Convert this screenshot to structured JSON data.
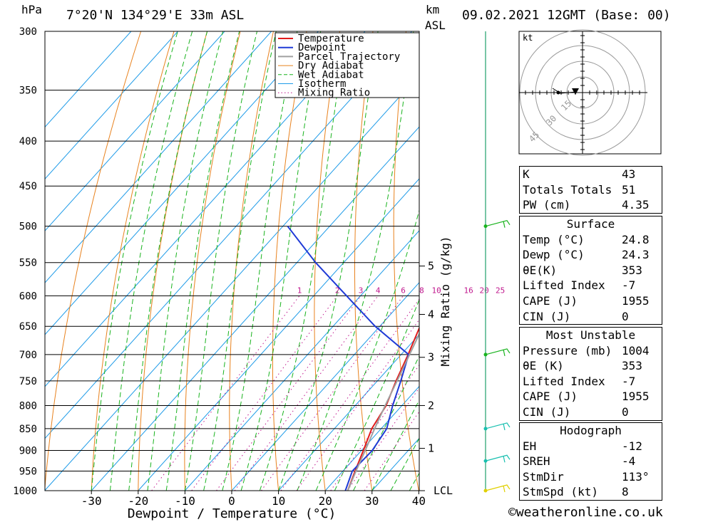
{
  "header": {
    "hpa_unit": "hPa",
    "location": "7°20'N  134°29'E  33m  ASL",
    "km_unit": "km",
    "asl_unit": "ASL",
    "datetime": "09.02.2021  12GMT  (Base: 00)"
  },
  "chart_data": {
    "type": "line",
    "xlabel": "Dewpoint / Temperature (°C)",
    "ylabel_right": "Mixing Ratio (g/kg)",
    "y_scale": "log",
    "ylim": [
      1000,
      300
    ],
    "xlim": [
      -40,
      40
    ],
    "pressure_levels": [
      300,
      350,
      400,
      450,
      500,
      550,
      600,
      650,
      700,
      750,
      800,
      850,
      900,
      950,
      1000
    ],
    "x_ticks": [
      -30,
      -20,
      -10,
      0,
      10,
      20,
      30,
      40
    ],
    "km_ticks": [
      {
        "label": "5",
        "p": 555
      },
      {
        "label": "4",
        "p": 630
      },
      {
        "label": "3",
        "p": 705
      },
      {
        "label": "2",
        "p": 800
      },
      {
        "label": "1",
        "p": 895
      },
      {
        "label": "LCL",
        "p": 1000
      }
    ],
    "mixing_ratio_labels": [
      "1",
      "2",
      "3",
      "4",
      "6",
      "8",
      "10",
      "16",
      "20",
      "25"
    ],
    "legend": [
      "Temperature",
      "Dewpoint",
      "Parcel Trajectory",
      "Dry Adiabat",
      "Wet Adiabat",
      "Isotherm",
      "Mixing Ratio"
    ],
    "colors": {
      "temperature": "#e21b1b",
      "dewpoint": "#1f3ad6",
      "parcel": "#a0a0a0",
      "dry_adiabat": "#e8821e",
      "wet_adiabat": "#19b31e",
      "isotherm": "#1e9be8",
      "mixing_ratio": "#c0188e"
    },
    "series": [
      {
        "name": "Temperature",
        "points": [
          [
            1000,
            24.8
          ],
          [
            950,
            22.6
          ],
          [
            900,
            20.4
          ],
          [
            850,
            18.0
          ],
          [
            800,
            16.6
          ],
          [
            750,
            14.0
          ],
          [
            700,
            11.5
          ],
          [
            650,
            8.6
          ],
          [
            600,
            5.6
          ],
          [
            550,
            2.0
          ],
          [
            500,
            -2.0
          ]
        ]
      },
      {
        "name": "Dewpoint",
        "points": [
          [
            1000,
            24.3
          ],
          [
            950,
            22.0
          ],
          [
            900,
            22.3
          ],
          [
            850,
            21.2
          ],
          [
            800,
            18.0
          ],
          [
            750,
            15.0
          ],
          [
            700,
            11.6
          ],
          [
            650,
            -1.0
          ],
          [
            600,
            -13.0
          ],
          [
            550,
            -26.0
          ],
          [
            500,
            -39.0
          ]
        ]
      },
      {
        "name": "Parcel Trajectory",
        "points": [
          [
            1000,
            24.8
          ],
          [
            950,
            22.8
          ],
          [
            900,
            20.8
          ],
          [
            850,
            18.6
          ],
          [
            800,
            16.4
          ],
          [
            750,
            14.2
          ],
          [
            700,
            11.8
          ],
          [
            650,
            9.2
          ],
          [
            600,
            6.4
          ],
          [
            550,
            3.2
          ],
          [
            500,
            -0.2
          ],
          [
            450,
            -4.5
          ],
          [
            400,
            -9.8
          ],
          [
            360,
            -15.0
          ]
        ]
      }
    ]
  },
  "hodograph": {
    "unit": "kt",
    "ring_labels": [
      "15",
      "30",
      "45"
    ]
  },
  "indices": {
    "k_label": "K",
    "k_value": "43",
    "tt_label": "Totals Totals",
    "tt_value": "51",
    "pw_label": "PW (cm)",
    "pw_value": "4.35"
  },
  "surface": {
    "title": "Surface",
    "temp_label": "Temp (°C)",
    "temp_value": "24.8",
    "dewp_label": "Dewp (°C)",
    "dewp_value": "24.3",
    "theta_label": "θE(K)",
    "theta_value": "353",
    "li_label": "Lifted Index",
    "li_value": "-7",
    "cape_label": "CAPE (J)",
    "cape_value": "1955",
    "cin_label": "CIN (J)",
    "cin_value": "0"
  },
  "most_unstable": {
    "title": "Most Unstable",
    "pressure_label": "Pressure (mb)",
    "pressure_value": "1004",
    "theta_label": "θE (K)",
    "theta_value": "353",
    "li_label": "Lifted Index",
    "li_value": "-7",
    "cape_label": "CAPE (J)",
    "cape_value": "1955",
    "cin_label": "CIN (J)",
    "cin_value": "0"
  },
  "hodograph_table": {
    "title": "Hodograph",
    "eh_label": "EH",
    "eh_value": "-12",
    "sreh_label": "SREH",
    "sreh_value": "-4",
    "stmdir_label": "StmDir",
    "stmdir_value": "113°",
    "stmspd_label": "StmSpd (kt)",
    "stmspd_value": "8"
  },
  "footer": {
    "copyright": "©weatheronline.co.uk"
  }
}
